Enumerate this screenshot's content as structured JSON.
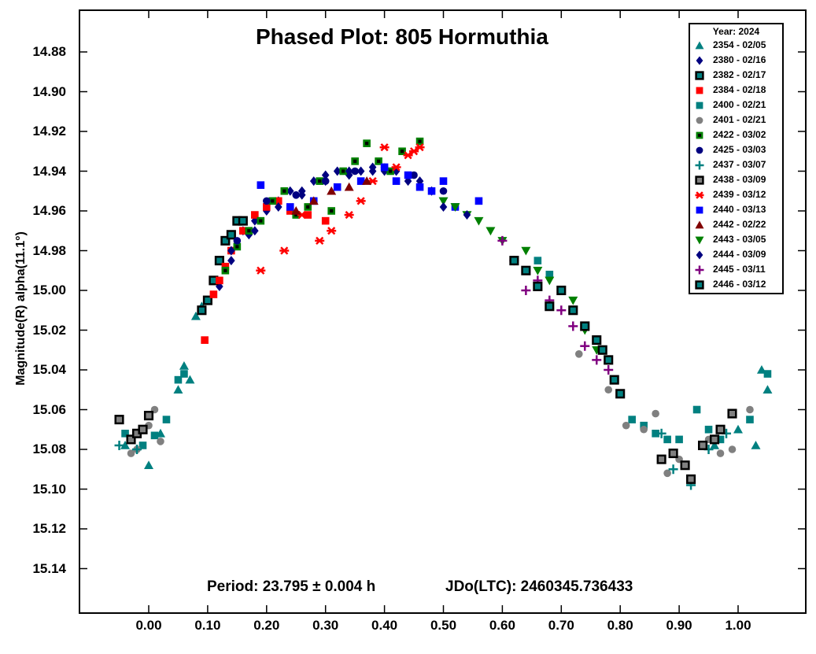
{
  "chart_data": {
    "type": "scatter",
    "title": "Phased Plot: 805 Hormuthia",
    "ylabel": "Magnitude(R) alpha(11.1°)",
    "xlabel": "",
    "period_text": "Period: 23.795 ± 0.004 h",
    "jdo_text": "JDo(LTC): 2460345.736433",
    "xlim": [
      -0.1,
      1.1
    ],
    "ylim": [
      14.86,
      15.165
    ],
    "y_inverted": true,
    "x_ticks": [
      "0.00",
      "0.10",
      "0.20",
      "0.30",
      "0.40",
      "0.50",
      "0.60",
      "0.70",
      "0.80",
      "0.90",
      "1.00"
    ],
    "y_ticks": [
      "14.88",
      "14.90",
      "14.92",
      "14.94",
      "14.96",
      "14.98",
      "15.00",
      "15.02",
      "15.04",
      "15.06",
      "15.08",
      "15.10",
      "15.12",
      "15.14"
    ],
    "grid": false,
    "legend_position": "top-right",
    "legend_title": "Year: 2024",
    "series": [
      {
        "name": "2354 - 02/05",
        "marker": "triangle-up",
        "color": "#008080",
        "x": [
          -0.04,
          0.0,
          0.02,
          0.05,
          0.06,
          0.07,
          0.08,
          0.09,
          0.96,
          1.0,
          1.03,
          1.04,
          1.05
        ],
        "y": [
          15.078,
          15.088,
          15.072,
          15.05,
          15.038,
          15.045,
          15.013,
          15.008,
          15.078,
          15.07,
          15.078,
          15.04,
          15.05
        ]
      },
      {
        "name": "2380 - 02/16",
        "marker": "diamond",
        "color": "#000080",
        "x": [
          0.12,
          0.14,
          0.16,
          0.17,
          0.18,
          0.2,
          0.22,
          0.24,
          0.26,
          0.28,
          0.3,
          0.32,
          0.34,
          0.36,
          0.38,
          0.4,
          0.42,
          0.44,
          0.46,
          0.48
        ],
        "y": [
          14.998,
          14.985,
          14.97,
          14.972,
          14.965,
          14.96,
          14.955,
          14.95,
          14.95,
          14.945,
          14.942,
          14.94,
          14.942,
          14.94,
          14.938,
          14.94,
          14.94,
          14.945,
          14.945,
          14.95
        ]
      },
      {
        "name": "2382 - 02/17",
        "marker": "square-outlined",
        "color": "#008080",
        "x": [
          0.09,
          0.1,
          0.11,
          0.12,
          0.13,
          0.14,
          0.15,
          0.16
        ],
        "y": [
          15.01,
          15.005,
          14.995,
          14.985,
          14.975,
          14.972,
          14.965,
          14.965
        ]
      },
      {
        "name": "2384 - 02/18",
        "marker": "square",
        "color": "#ff0000",
        "x": [
          0.095,
          0.11,
          0.12,
          0.13,
          0.14,
          0.16,
          0.18,
          0.2,
          0.22,
          0.24,
          0.27,
          0.3
        ],
        "y": [
          15.025,
          15.002,
          14.995,
          14.988,
          14.98,
          14.97,
          14.962,
          14.958,
          14.955,
          14.96,
          14.962,
          14.965
        ]
      },
      {
        "name": "2400 - 02/21",
        "marker": "square",
        "color": "#008080",
        "x": [
          -0.04,
          -0.01,
          0.01,
          0.03,
          0.05,
          0.06,
          0.66,
          0.68,
          0.82,
          0.84,
          0.86,
          0.88,
          0.9,
          0.93,
          0.95,
          0.97,
          1.02,
          1.05
        ],
        "y": [
          15.072,
          15.078,
          15.073,
          15.065,
          15.045,
          15.042,
          14.985,
          14.992,
          15.065,
          15.068,
          15.072,
          15.075,
          15.075,
          15.06,
          15.07,
          15.075,
          15.065,
          15.042
        ]
      },
      {
        "name": "2401 - 02/21",
        "marker": "circle",
        "color": "#808080",
        "x": [
          -0.03,
          -0.02,
          0.0,
          0.01,
          0.02,
          0.73,
          0.78,
          0.81,
          0.84,
          0.86,
          0.88,
          0.9,
          0.95,
          0.97,
          0.99,
          1.02
        ],
        "y": [
          15.082,
          15.08,
          15.068,
          15.06,
          15.076,
          15.032,
          15.05,
          15.068,
          15.07,
          15.062,
          15.092,
          15.085,
          15.075,
          15.082,
          15.08,
          15.06
        ]
      },
      {
        "name": "2422 - 03/02",
        "marker": "square-dot",
        "color": "#008000",
        "x": [
          0.13,
          0.15,
          0.17,
          0.19,
          0.21,
          0.23,
          0.25,
          0.27,
          0.29,
          0.31,
          0.33,
          0.35,
          0.37,
          0.39,
          0.41,
          0.43,
          0.46
        ],
        "y": [
          14.99,
          14.978,
          14.97,
          14.965,
          14.955,
          14.95,
          14.962,
          14.958,
          14.945,
          14.96,
          14.94,
          14.935,
          14.926,
          14.935,
          14.94,
          14.93,
          14.925
        ]
      },
      {
        "name": "2425 - 03/03",
        "marker": "circle",
        "color": "#000080",
        "x": [
          0.15,
          0.2,
          0.25,
          0.3,
          0.35,
          0.4,
          0.45,
          0.5
        ],
        "y": [
          14.975,
          14.955,
          14.952,
          14.945,
          14.94,
          14.938,
          14.942,
          14.95
        ]
      },
      {
        "name": "2437 - 03/07",
        "marker": "plus",
        "color": "#008080",
        "x": [
          -0.05,
          -0.02,
          0.87,
          0.89,
          0.92,
          0.95,
          0.98
        ],
        "y": [
          15.078,
          15.08,
          15.072,
          15.09,
          15.098,
          15.08,
          15.072
        ]
      },
      {
        "name": "2438 - 03/09",
        "marker": "square-outlined",
        "color": "#808080",
        "x": [
          -0.05,
          -0.03,
          -0.02,
          -0.01,
          0.0,
          0.87,
          0.89,
          0.91,
          0.92,
          0.94,
          0.96,
          0.97,
          0.99
        ],
        "y": [
          15.065,
          15.075,
          15.072,
          15.07,
          15.063,
          15.085,
          15.082,
          15.088,
          15.095,
          15.078,
          15.075,
          15.07,
          15.062
        ]
      },
      {
        "name": "2439 - 03/12",
        "marker": "asterisk",
        "color": "#ff0000",
        "x": [
          0.19,
          0.23,
          0.26,
          0.29,
          0.31,
          0.34,
          0.36,
          0.38,
          0.4,
          0.42,
          0.44,
          0.45,
          0.46
        ],
        "y": [
          14.99,
          14.98,
          14.962,
          14.975,
          14.97,
          14.962,
          14.955,
          14.945,
          14.928,
          14.938,
          14.932,
          14.93,
          14.928
        ]
      },
      {
        "name": "2440 - 03/13",
        "marker": "square",
        "color": "#0000ff",
        "x": [
          0.19,
          0.24,
          0.28,
          0.32,
          0.36,
          0.4,
          0.42,
          0.44,
          0.46,
          0.48,
          0.5,
          0.52,
          0.56
        ],
        "y": [
          14.947,
          14.958,
          14.955,
          14.948,
          14.945,
          14.938,
          14.945,
          14.942,
          14.948,
          14.95,
          14.945,
          14.958,
          14.955
        ]
      },
      {
        "name": "2442 - 02/22",
        "marker": "triangle-up",
        "color": "#800000",
        "x": [
          0.25,
          0.28,
          0.31,
          0.34,
          0.37
        ],
        "y": [
          14.96,
          14.955,
          14.95,
          14.948,
          14.945
        ]
      },
      {
        "name": "2443 - 03/05",
        "marker": "triangle-down",
        "color": "#008000",
        "x": [
          0.5,
          0.52,
          0.54,
          0.56,
          0.58,
          0.6,
          0.62,
          0.64,
          0.66,
          0.68,
          0.7,
          0.72,
          0.74,
          0.76
        ],
        "y": [
          14.955,
          14.958,
          14.962,
          14.965,
          14.97,
          14.975,
          14.985,
          14.98,
          14.99,
          14.995,
          15.0,
          15.005,
          15.02,
          15.03
        ]
      },
      {
        "name": "2444 - 03/09",
        "marker": "diamond",
        "color": "#000080",
        "x": [
          0.14,
          0.18,
          0.22,
          0.26,
          0.3,
          0.34,
          0.38,
          0.5,
          0.54
        ],
        "y": [
          14.98,
          14.97,
          14.958,
          14.952,
          14.945,
          14.94,
          14.94,
          14.958,
          14.962
        ]
      },
      {
        "name": "2445 - 03/11",
        "marker": "plus",
        "color": "#800080",
        "x": [
          0.6,
          0.62,
          0.64,
          0.66,
          0.68,
          0.7,
          0.72,
          0.74,
          0.76,
          0.78
        ],
        "y": [
          14.975,
          14.985,
          15.0,
          14.995,
          15.005,
          15.01,
          15.018,
          15.028,
          15.035,
          15.04
        ]
      },
      {
        "name": "2446 - 03/12",
        "marker": "square-outlined",
        "color": "#008080",
        "x": [
          0.62,
          0.64,
          0.66,
          0.68,
          0.7,
          0.72,
          0.74,
          0.76,
          0.77,
          0.78,
          0.79,
          0.8
        ],
        "y": [
          14.985,
          14.99,
          14.998,
          15.008,
          15.0,
          15.01,
          15.018,
          15.025,
          15.03,
          15.035,
          15.045,
          15.052
        ]
      }
    ]
  }
}
